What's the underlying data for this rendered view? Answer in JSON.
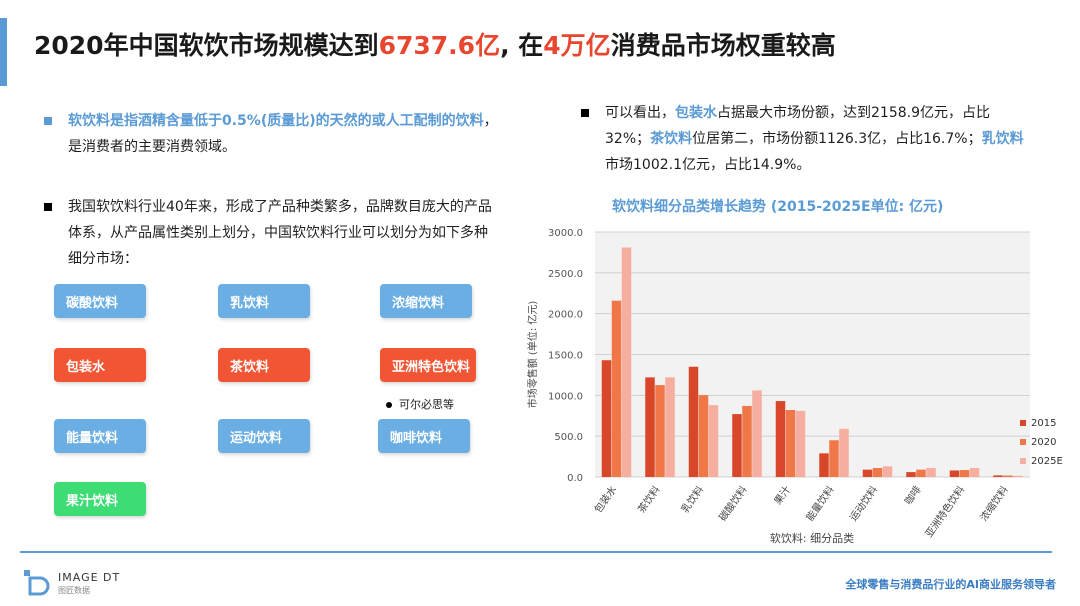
{
  "header": {
    "title_part1": "2020年中国软饮市场规模达到",
    "title_hl1": "6737.6亿",
    "title_part2": ", 在",
    "title_hl2": "4万亿",
    "title_part3": "消费品市场权重较高"
  },
  "left": {
    "bullet1_em": "软饮料是指酒精含量低于0.5%(质量比)的天然的或人工配制的饮料",
    "bullet1_rest": "，是消费者的主要消费领域。",
    "bullet2": "我国软饮料行业40年来，形成了产品种类繁多，品牌数目庞大的产品体系，从产品属性类别上划分，中国软饮料行业可以划分为如下多种细分市场：",
    "tags": [
      "碳酸饮料",
      "乳饮料",
      "浓缩饮料",
      "包装水",
      "茶饮料",
      "亚洲特色饮料",
      "能量饮料",
      "运动饮料",
      "咖啡饮料",
      "果汁饮料"
    ],
    "note": "可尔必思等"
  },
  "right": {
    "t1": "可以看出，",
    "em1": "包装水",
    "t2": "占据最大市场份额，达到2158.9亿元，占比32%；",
    "em2": "茶饮料",
    "t3": "位居第二，市场份额1126.3亿，占比16.7%；",
    "em3": "乳饮料",
    "t4": "市场1002.1亿元，占比14.9%。"
  },
  "chart_data": {
    "type": "bar",
    "title": "软饮料细分品类增长趋势 (2015-2025E单位: 亿元)",
    "xlabel": "软饮料: 细分品类",
    "ylabel": "市场零售额 (单位: 亿元)",
    "ylim": [
      0,
      3000
    ],
    "yticks": [
      "0.0",
      "500.0",
      "1000.0",
      "1500.0",
      "2000.0",
      "2500.0",
      "3000.0"
    ],
    "grid": true,
    "legend": "right",
    "categories": [
      "包装水",
      "茶饮料",
      "乳饮料",
      "碳酸饮料",
      "果汁",
      "能量饮料",
      "运动饮料",
      "咖啡",
      "亚洲特色饮料",
      "浓缩饮料"
    ],
    "series": [
      {
        "name": "2015",
        "color": "#d9472b",
        "values": [
          1430,
          1220,
          1350,
          770,
          930,
          290,
          90,
          60,
          80,
          20
        ]
      },
      {
        "name": "2020",
        "color": "#f07748",
        "values": [
          2159,
          1126,
          1002,
          870,
          820,
          450,
          110,
          90,
          85,
          18
        ]
      },
      {
        "name": "2025E",
        "color": "#f6aea0",
        "values": [
          2810,
          1220,
          880,
          1060,
          810,
          590,
          130,
          110,
          110,
          15
        ]
      }
    ]
  },
  "footer": {
    "logo_text": "IMAGE DT",
    "logo_sub": "图匠数据",
    "slogan": "全球零售与消费品行业的AI商业服务领导者"
  }
}
